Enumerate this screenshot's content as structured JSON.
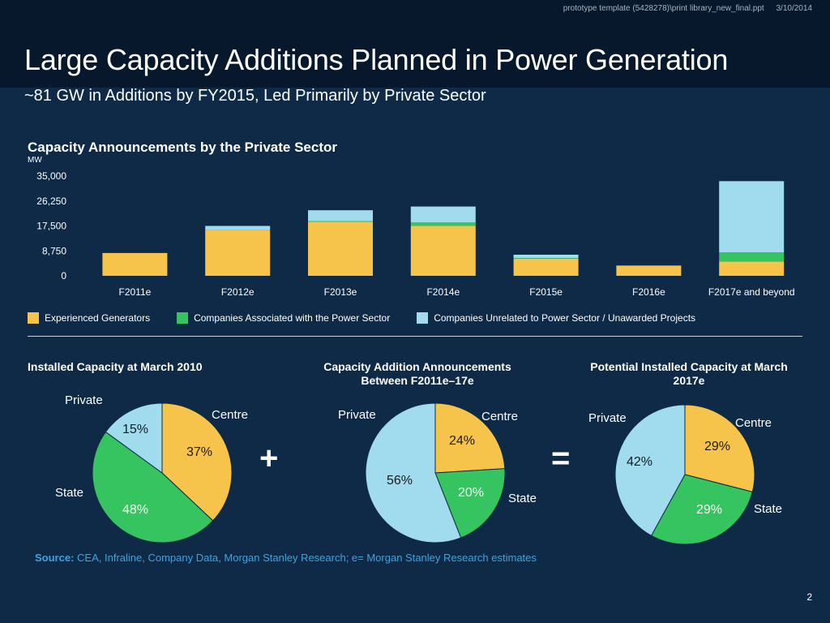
{
  "meta": {
    "file_path": "prototype template (5428278)\\print library_new_final.ppt",
    "date": "3/10/2014"
  },
  "title": "Large Capacity Additions Planned in Power Generation",
  "subtitle": "~81 GW in Additions by FY2015, Led Primarily by Private Sector",
  "colors": {
    "background": "#0e2a47",
    "header_band": "#07182c",
    "experienced": "#f6c34b",
    "associated": "#35c45f",
    "unrelated": "#a0dcee",
    "source_text": "#3fa3e0"
  },
  "chart_data": [
    {
      "type": "bar",
      "stacked": true,
      "title": "Capacity Announcements by the Private Sector",
      "ylabel": "MW",
      "ylim": [
        0,
        35000
      ],
      "yticks": [
        0,
        8750,
        17500,
        26250,
        35000
      ],
      "ytick_labels": [
        "0",
        "8,750",
        "17,500",
        "26,250",
        "35,000"
      ],
      "categories": [
        "F2011e",
        "F2012e",
        "F2013e",
        "F2014e",
        "F2015e",
        "F2016e",
        "F2017e and beyond"
      ],
      "series": [
        {
          "name": "Experienced Generators",
          "color": "#f6c34b",
          "values": [
            8000,
            16000,
            19000,
            17500,
            6000,
            3600,
            5000
          ]
        },
        {
          "name": "Companies Associated with the Power Sector",
          "color": "#35c45f",
          "values": [
            0,
            0,
            200,
            1200,
            200,
            0,
            3200
          ]
        },
        {
          "name": "Companies Unrelated to Power Sector / Unawarded Projects",
          "color": "#a0dcee",
          "values": [
            0,
            1500,
            3800,
            5600,
            1200,
            0,
            25000
          ]
        }
      ],
      "legend_position": "bottom",
      "grid": false
    },
    {
      "type": "pie",
      "title": "Installed Capacity at March 2010",
      "slices": [
        {
          "label": "Centre",
          "value": 37,
          "text": "37%",
          "color": "#f6c34b"
        },
        {
          "label": "State",
          "value": 48,
          "text": "48%",
          "color": "#35c45f"
        },
        {
          "label": "Private",
          "value": 15,
          "text": "15%",
          "color": "#a0dcee"
        }
      ]
    },
    {
      "type": "pie",
      "title": "Capacity Addition Announcements Between F2011e–17e",
      "slices": [
        {
          "label": "Centre",
          "value": 24,
          "text": "24%",
          "color": "#f6c34b"
        },
        {
          "label": "State",
          "value": 20,
          "text": "20%",
          "color": "#35c45f"
        },
        {
          "label": "Private",
          "value": 56,
          "text": "56%",
          "color": "#a0dcee"
        }
      ]
    },
    {
      "type": "pie",
      "title": "Potential Installed Capacity at March 2017e",
      "slices": [
        {
          "label": "Centre",
          "value": 29,
          "text": "29%",
          "color": "#f6c34b"
        },
        {
          "label": "State",
          "value": 29,
          "text": "29%",
          "color": "#35c45f"
        },
        {
          "label": "Private",
          "value": 42,
          "text": "42%",
          "color": "#a0dcee"
        }
      ]
    }
  ],
  "operators": {
    "plus": "+",
    "equals": "="
  },
  "source": {
    "label": "Source:",
    "text": "CEA, Infraline, Company Data, Morgan Stanley Research; e= Morgan Stanley Research estimates"
  },
  "page_number": "2"
}
